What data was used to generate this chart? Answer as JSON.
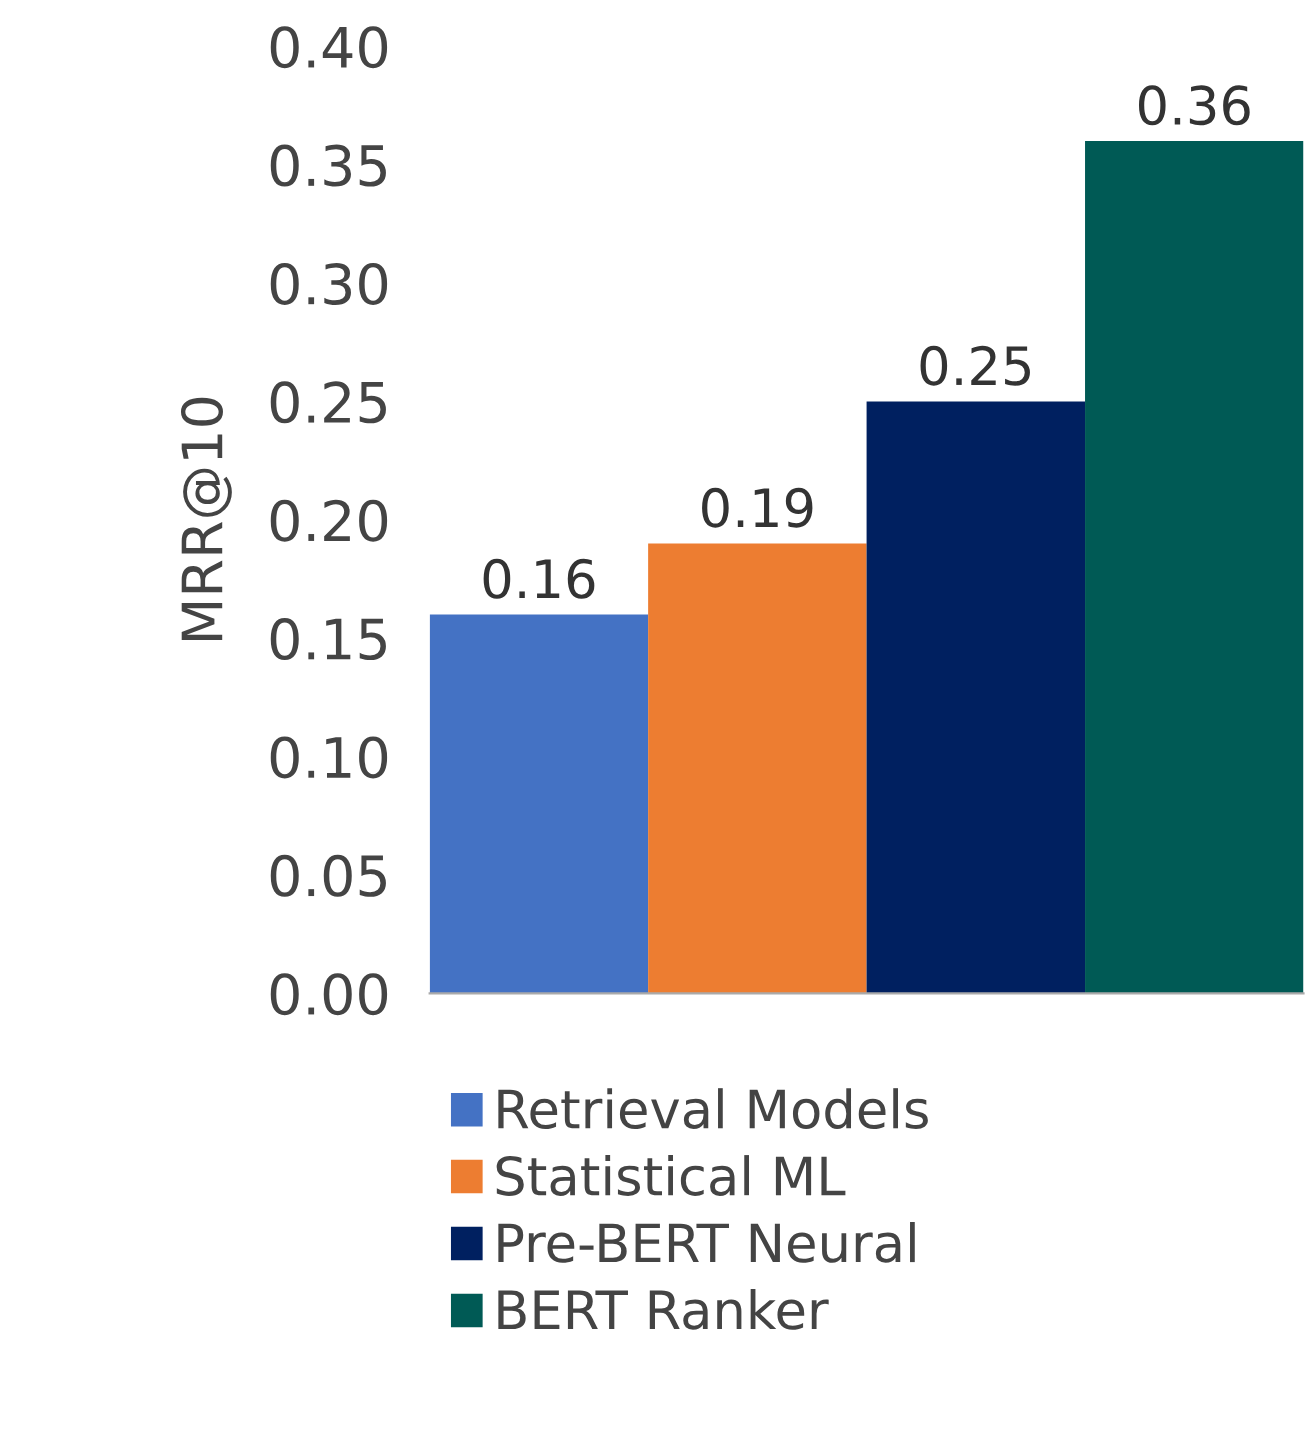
{
  "chart_data": {
    "type": "bar",
    "ylabel": "MRR@10",
    "categories": [
      null
    ],
    "series": [
      {
        "name": "Retrieval Models",
        "color": "#4472c4",
        "values": [
          0.16
        ]
      },
      {
        "name": "Statistical ML",
        "color": "#ed7d31",
        "values": [
          0.19
        ]
      },
      {
        "name": "Pre-BERT Neural",
        "color": "#002060",
        "values": [
          0.25
        ]
      },
      {
        "name": "BERT Ranker",
        "color": "#005a55",
        "values": [
          0.36
        ]
      }
    ],
    "ylim": [
      0,
      0.4
    ],
    "yticks": [
      {
        "value": 0,
        "label": "0.00"
      },
      {
        "value": 0.05,
        "label": "0.05"
      },
      {
        "value": 0.1,
        "label": "0.10"
      },
      {
        "value": 0.15,
        "label": "0.15"
      },
      {
        "value": 0.2,
        "label": "0.20"
      },
      {
        "value": 0.25,
        "label": "0.25"
      },
      {
        "value": 0.3,
        "label": "0.30"
      },
      {
        "value": 0.35,
        "label": "0.35"
      },
      {
        "value": 0.4,
        "label": "0.40"
      }
    ],
    "data_labels": true,
    "grid": false,
    "legend": "bottom"
  }
}
